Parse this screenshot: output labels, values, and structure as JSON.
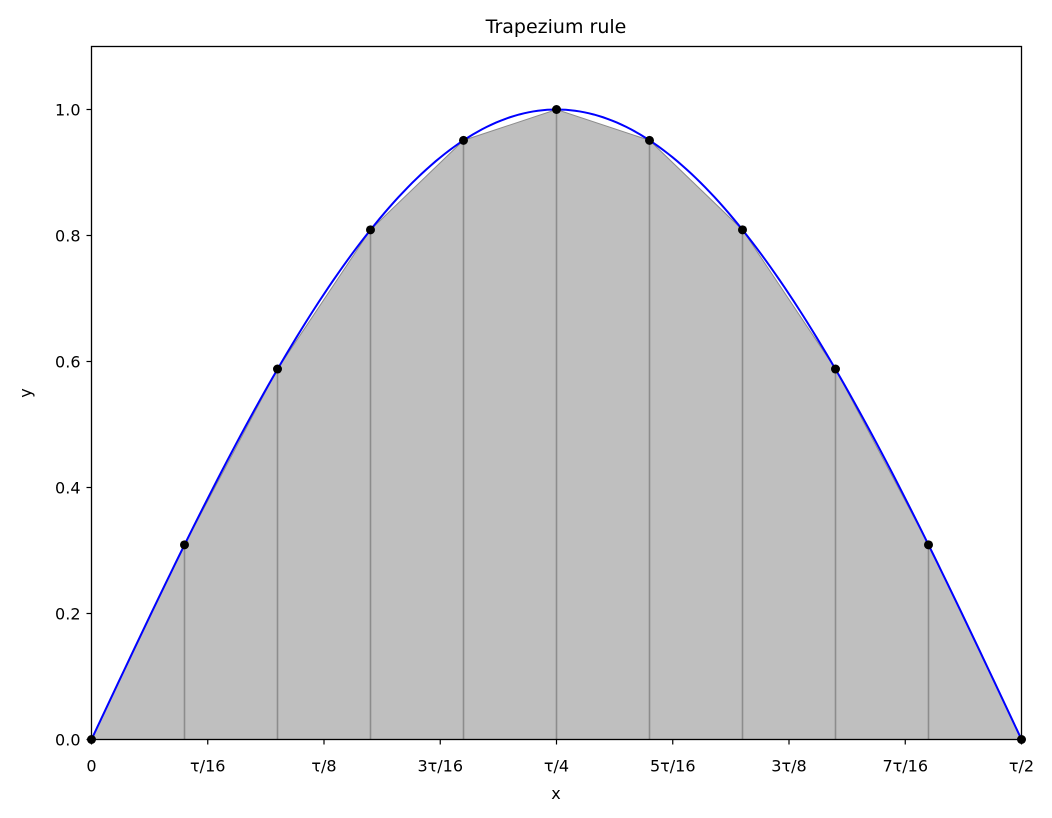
{
  "chart_data": {
    "type": "area",
    "title": "Trapezium rule",
    "xlabel": "x",
    "ylabel": "y",
    "xlim": [
      0,
      0.5
    ],
    "ylim": [
      0,
      1.1
    ],
    "x_unit": "τ",
    "x_ticks": [
      {
        "value": 0,
        "label": "0"
      },
      {
        "value": 0.0625,
        "label": "τ/16"
      },
      {
        "value": 0.125,
        "label": "τ/8"
      },
      {
        "value": 0.1875,
        "label": "3τ/16"
      },
      {
        "value": 0.25,
        "label": "τ/4"
      },
      {
        "value": 0.3125,
        "label": "5τ/16"
      },
      {
        "value": 0.375,
        "label": "3τ/8"
      },
      {
        "value": 0.4375,
        "label": "7τ/16"
      },
      {
        "value": 0.5,
        "label": "τ/2"
      }
    ],
    "y_ticks": [
      {
        "value": 0.0,
        "label": "0.0"
      },
      {
        "value": 0.2,
        "label": "0.2"
      },
      {
        "value": 0.4,
        "label": "0.4"
      },
      {
        "value": 0.6,
        "label": "0.6"
      },
      {
        "value": 0.8,
        "label": "0.8"
      },
      {
        "value": 1.0,
        "label": "1.0"
      }
    ],
    "curve": {
      "function": "sin(x)",
      "color": "#0000ff"
    },
    "sample_points": {
      "x": [
        0,
        0.05,
        0.1,
        0.15,
        0.2,
        0.25,
        0.3,
        0.35,
        0.4,
        0.45,
        0.5
      ],
      "y": [
        0.0,
        0.309,
        0.588,
        0.809,
        0.951,
        1.0,
        0.951,
        0.809,
        0.588,
        0.309,
        0.0
      ],
      "color": "#000000"
    },
    "trapezium_fill_color": "#bfbfbf",
    "trapezium_edge_color": "#8c8c8c",
    "grid": false
  }
}
